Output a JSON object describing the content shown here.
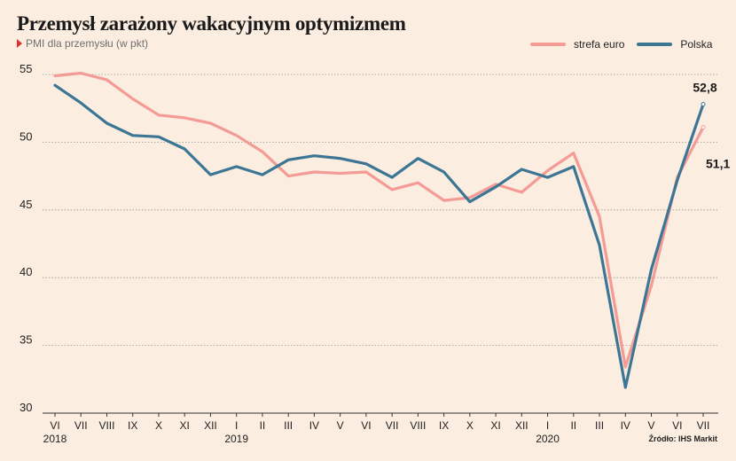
{
  "header": {
    "title": "Przemysł zarażony wakacyjnym optymizmem",
    "subtitle": "PMI dla przemysłu (w pkt)"
  },
  "legend": {
    "items": [
      {
        "label": "strefa euro",
        "color": "#f49b95"
      },
      {
        "label": "Polska",
        "color": "#3c7694"
      }
    ]
  },
  "source": "Źródło: IHS Markit",
  "chart_data": {
    "type": "line",
    "title": "Przemysł zarażony wakacyjnym optymizmem",
    "subtitle": "PMI dla przemysłu (w pkt)",
    "categories": [
      "VI",
      "VII",
      "VIII",
      "IX",
      "X",
      "XI",
      "XII",
      "I",
      "II",
      "III",
      "IV",
      "V",
      "VI",
      "VII",
      "VIII",
      "IX",
      "X",
      "XI",
      "XII",
      "I",
      "II",
      "III",
      "IV",
      "V",
      "VI",
      "VII"
    ],
    "year_labels": [
      {
        "label": "2018",
        "index": 0
      },
      {
        "label": "2019",
        "index": 7
      },
      {
        "label": "2020",
        "index": 19
      }
    ],
    "ylim": [
      30,
      55
    ],
    "yticks": [
      30,
      35,
      40,
      45,
      50,
      55
    ],
    "grid": true,
    "legend_position": "top-right",
    "series": [
      {
        "name": "strefa euro",
        "color": "#f49b95",
        "values": [
          54.9,
          55.1,
          54.6,
          53.2,
          52.0,
          51.8,
          51.4,
          50.5,
          49.3,
          47.5,
          47.8,
          47.7,
          47.8,
          46.5,
          47.0,
          45.7,
          45.9,
          46.9,
          46.3,
          47.9,
          49.2,
          44.5,
          33.4,
          39.4,
          47.4,
          51.1
        ],
        "end_label": "51,1"
      },
      {
        "name": "Polska",
        "color": "#3c7694",
        "values": [
          54.2,
          52.9,
          51.4,
          50.5,
          50.4,
          49.5,
          47.6,
          48.2,
          47.6,
          48.7,
          49.0,
          48.8,
          48.4,
          47.4,
          48.8,
          47.8,
          45.6,
          46.7,
          48.0,
          47.4,
          48.2,
          42.4,
          31.9,
          40.6,
          47.2,
          52.8
        ],
        "end_label": "52,8"
      }
    ]
  }
}
